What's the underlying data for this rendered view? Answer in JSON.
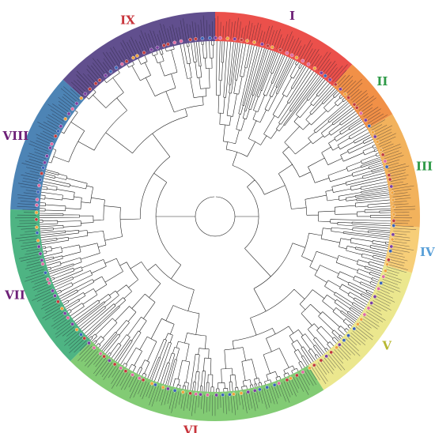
{
  "figure": {
    "type": "circular-phylogenetic-tree",
    "clades": [
      {
        "label": "I",
        "start_deg": -90,
        "end_deg": -48,
        "color": "#e8312c",
        "label_color": "#6d2077"
      },
      {
        "label": "II",
        "start_deg": -48,
        "end_deg": -30,
        "color": "#ef7d27",
        "label_color": "#2e9a47"
      },
      {
        "label": "III",
        "start_deg": -30,
        "end_deg": 3,
        "color": "#f0a540",
        "label_color": "#2e9a47"
      },
      {
        "label": "IV",
        "start_deg": 3,
        "end_deg": 16,
        "color": "#f6c560",
        "label_color": "#5aa0d8"
      },
      {
        "label": "V",
        "start_deg": 16,
        "end_deg": 58,
        "color": "#e7e37a",
        "label_color": "#b8b832"
      },
      {
        "label": "VI",
        "start_deg": 58,
        "end_deg": 135,
        "color": "#6cc25c",
        "label_color": "#c8353c"
      },
      {
        "label": "VII",
        "start_deg": 135,
        "end_deg": 182,
        "color": "#2fa76d",
        "label_color": "#6d2077"
      },
      {
        "label": "VIII",
        "start_deg": 182,
        "end_deg": 222,
        "color": "#2e6fa8",
        "label_color": "#6d2077"
      },
      {
        "label": "IX",
        "start_deg": 222,
        "end_deg": 270,
        "color": "#45307a",
        "label_color": "#c8353c"
      }
    ],
    "leaf_marker_colors": [
      "#7b3fa0",
      "#e06aa0",
      "#3a64b8",
      "#c23b3b",
      "#f0a540"
    ]
  }
}
